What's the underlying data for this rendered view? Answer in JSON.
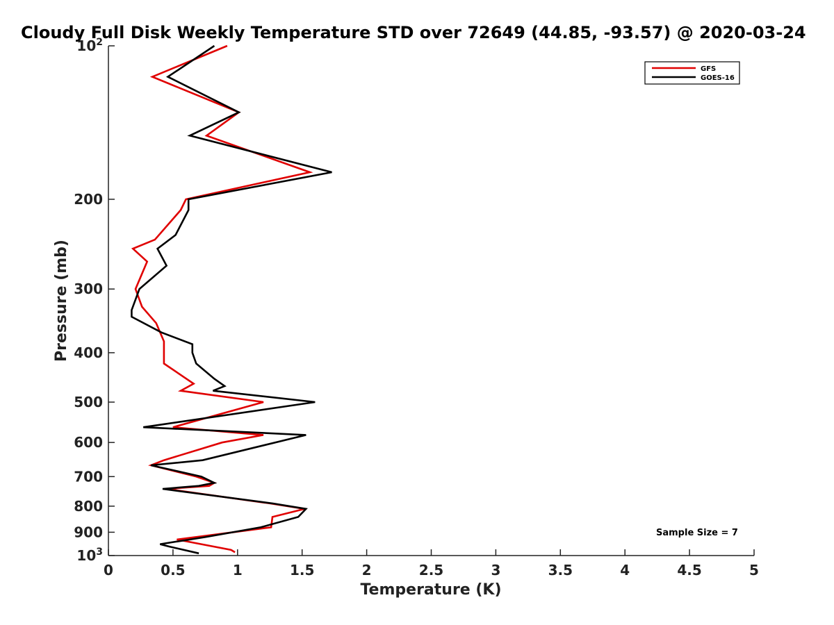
{
  "chart_data": {
    "type": "line",
    "title": "Cloudy Full Disk Weekly Temperature STD over 72649 (44.85, -93.57) @ 2020-03-24",
    "xlabel": "Temperature (K)",
    "ylabel": "Pressure (mb)",
    "xlim": [
      0,
      5
    ],
    "ylim": [
      100,
      1000
    ],
    "yscale": "log",
    "y_reversed": true,
    "grid": false,
    "legend_position": "top-right",
    "x_ticks": [
      "0",
      "0.5",
      "1",
      "1.5",
      "2",
      "2.5",
      "3",
      "3.5",
      "4",
      "4.5",
      "5"
    ],
    "y_ticks": [
      {
        "value": 100,
        "base": "10",
        "exp": "2"
      },
      {
        "value": 200,
        "label": "200"
      },
      {
        "value": 300,
        "label": "300"
      },
      {
        "value": 400,
        "label": "400"
      },
      {
        "value": 500,
        "label": "500"
      },
      {
        "value": 600,
        "label": "600"
      },
      {
        "value": 700,
        "label": "700"
      },
      {
        "value": 800,
        "label": "800"
      },
      {
        "value": 900,
        "label": "900"
      },
      {
        "value": 1000,
        "base": "10",
        "exp": "3"
      }
    ],
    "series": [
      {
        "name": "GFS",
        "color": "#e00000",
        "points": [
          [
            0.92,
            100
          ],
          [
            0.34,
            115
          ],
          [
            1.01,
            135
          ],
          [
            0.76,
            150
          ],
          [
            1.56,
            177
          ],
          [
            0.6,
            200
          ],
          [
            0.56,
            210
          ],
          [
            0.36,
            240
          ],
          [
            0.19,
            250
          ],
          [
            0.3,
            265
          ],
          [
            0.21,
            300
          ],
          [
            0.26,
            325
          ],
          [
            0.37,
            350
          ],
          [
            0.43,
            380
          ],
          [
            0.43,
            420
          ],
          [
            0.66,
            460
          ],
          [
            0.56,
            475
          ],
          [
            1.2,
            500
          ],
          [
            0.5,
            560
          ],
          [
            1.2,
            580
          ],
          [
            0.88,
            600
          ],
          [
            0.43,
            650
          ],
          [
            0.33,
            665
          ],
          [
            0.68,
            700
          ],
          [
            0.82,
            720
          ],
          [
            0.78,
            730
          ],
          [
            0.45,
            740
          ],
          [
            1.25,
            790
          ],
          [
            1.52,
            810
          ],
          [
            1.27,
            840
          ],
          [
            1.26,
            880
          ],
          [
            0.53,
            930
          ],
          [
            0.95,
            975
          ],
          [
            0.98,
            985
          ]
        ]
      },
      {
        "name": "GOES-16",
        "color": "#000000",
        "points": [
          [
            0.82,
            100
          ],
          [
            0.46,
            115
          ],
          [
            1.01,
            135
          ],
          [
            0.63,
            150
          ],
          [
            1.73,
            177
          ],
          [
            0.62,
            200
          ],
          [
            0.62,
            210
          ],
          [
            0.52,
            235
          ],
          [
            0.38,
            250
          ],
          [
            0.45,
            270
          ],
          [
            0.24,
            300
          ],
          [
            0.18,
            330
          ],
          [
            0.18,
            340
          ],
          [
            0.41,
            365
          ],
          [
            0.65,
            385
          ],
          [
            0.65,
            400
          ],
          [
            0.68,
            420
          ],
          [
            0.82,
            450
          ],
          [
            0.9,
            465
          ],
          [
            0.81,
            475
          ],
          [
            1.6,
            500
          ],
          [
            0.27,
            560
          ],
          [
            1.53,
            580
          ],
          [
            0.73,
            650
          ],
          [
            0.33,
            665
          ],
          [
            0.72,
            700
          ],
          [
            0.82,
            720
          ],
          [
            0.7,
            730
          ],
          [
            0.42,
            740
          ],
          [
            1.27,
            790
          ],
          [
            1.53,
            810
          ],
          [
            1.47,
            840
          ],
          [
            1.18,
            880
          ],
          [
            0.75,
            920
          ],
          [
            0.4,
            950
          ],
          [
            0.47,
            960
          ],
          [
            0.7,
            990
          ]
        ]
      }
    ],
    "annotations": [
      "Sample Size = 7"
    ]
  }
}
